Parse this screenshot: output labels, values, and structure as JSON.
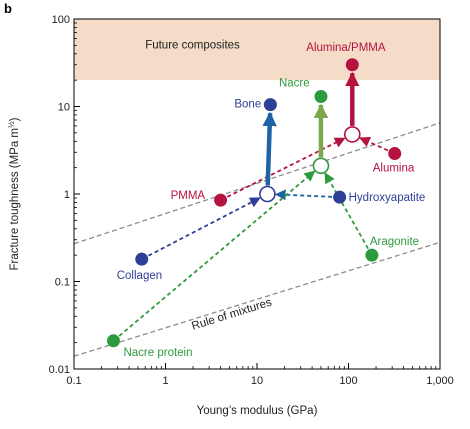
{
  "panel_label": "b",
  "chart_data": {
    "type": "scatter",
    "xscale": "log",
    "yscale": "log",
    "xlim": [
      0.1,
      1000
    ],
    "ylim": [
      0.01,
      100
    ],
    "xlabel": "Young’s modulus (GPa)",
    "ylabel": "Fracture toughness (MPa m",
    "ylabel_sup": "½",
    "ylabel_close": ")",
    "x_ticks": [
      {
        "value": 0.1,
        "label": "0.1"
      },
      {
        "value": 1,
        "label": "1"
      },
      {
        "value": 10,
        "label": "10"
      },
      {
        "value": 100,
        "label": "100"
      },
      {
        "value": 1000,
        "label": "1,000"
      }
    ],
    "y_ticks": [
      {
        "value": 0.01,
        "label": "0.01"
      },
      {
        "value": 0.1,
        "label": "0.1"
      },
      {
        "value": 1,
        "label": "1"
      },
      {
        "value": 10,
        "label": "10"
      },
      {
        "value": 100,
        "label": "100"
      }
    ],
    "band": {
      "label": "Future composites",
      "y_from": 20,
      "y_to": 100,
      "color": "#f5dcc8"
    },
    "colors": {
      "blue": "#2e3f96",
      "red": "#b5133f",
      "green": "#2e9a3e",
      "steel": "#1e63a3",
      "olive": "#7aa84a",
      "grey": "#8c8c8c"
    },
    "points": [
      {
        "id": "collagen",
        "label": "Collagen",
        "x": 0.55,
        "y": 0.18,
        "color": "#2e3f96",
        "filled": true
      },
      {
        "id": "pmma",
        "label": "PMMA",
        "x": 4,
        "y": 0.85,
        "color": "#b5133f",
        "filled": true
      },
      {
        "id": "bone",
        "label": "Bone",
        "x": 14,
        "y": 10.5,
        "color": "#2e3f96",
        "filled": true
      },
      {
        "id": "nacre",
        "label": "Nacre",
        "x": 50,
        "y": 13,
        "color": "#2e9a3e",
        "filled": true
      },
      {
        "id": "alumina-pmma",
        "label": "Alumina/PMMA",
        "x": 110,
        "y": 30,
        "color": "#b5133f",
        "filled": true
      },
      {
        "id": "alumina",
        "label": "Alumina",
        "x": 320,
        "y": 2.9,
        "color": "#b5133f",
        "filled": true
      },
      {
        "id": "hydroxyapatite",
        "label": "Hydroxyapatite",
        "x": 80,
        "y": 0.92,
        "color": "#2e3f96",
        "filled": true
      },
      {
        "id": "aragonite",
        "label": "Aragonite",
        "x": 180,
        "y": 0.2,
        "color": "#2e9a3e",
        "filled": true
      },
      {
        "id": "nacre-protein",
        "label": "Nacre protein",
        "x": 0.27,
        "y": 0.021,
        "color": "#2e9a3e",
        "filled": true
      },
      {
        "id": "bone-mix",
        "label": "",
        "x": 13,
        "y": 1.0,
        "color": "#2e3f96",
        "filled": false
      },
      {
        "id": "nacre-mix",
        "label": "",
        "x": 50,
        "y": 2.1,
        "color": "#2e9a3e",
        "filled": false
      },
      {
        "id": "alumina-pmma-mix",
        "label": "",
        "x": 110,
        "y": 4.8,
        "color": "#b5133f",
        "filled": false
      }
    ],
    "rule_of_mixtures": {
      "label": "Rule of mixtures"
    },
    "trend_lines": [
      {
        "x1": 0.1,
        "y1": 0.27,
        "x2": 1000,
        "y2": 6.5
      },
      {
        "x1": 0.1,
        "y1": 0.014,
        "x2": 1000,
        "y2": 0.28
      }
    ],
    "dashed_arrows": [
      {
        "from": "collagen",
        "to": "bone-mix",
        "color": "#2e3f96"
      },
      {
        "from": "hydroxyapatite",
        "to": "bone-mix",
        "color": "#1e63a3"
      },
      {
        "from": "pmma",
        "to": "alumina-pmma-mix",
        "color": "#b5133f"
      },
      {
        "from": "alumina",
        "to": "alumina-pmma-mix",
        "color": "#b5133f"
      },
      {
        "from": "nacre-protein",
        "to": "nacre-mix",
        "color": "#2e9a3e"
      },
      {
        "from": "aragonite",
        "to": "nacre-mix",
        "color": "#2e9a3e"
      }
    ],
    "solid_arrows": [
      {
        "from": "bone-mix",
        "to": "bone",
        "color": "#1e63a3"
      },
      {
        "from": "nacre-mix",
        "to": "nacre",
        "color": "#7aa84a"
      },
      {
        "from": "alumina-pmma-mix",
        "to": "alumina-pmma",
        "color": "#b5133f"
      }
    ]
  }
}
